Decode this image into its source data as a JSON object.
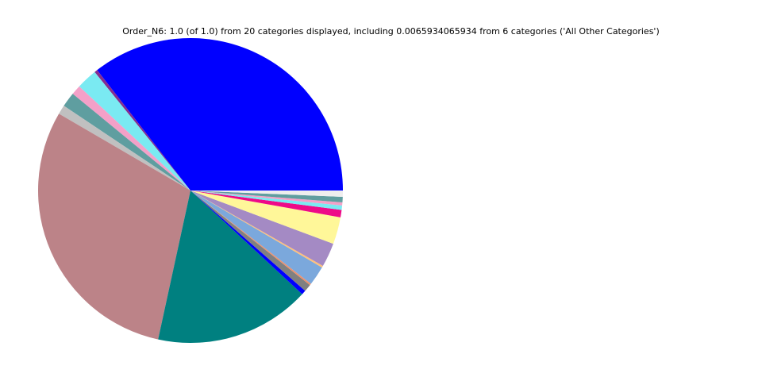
{
  "chart_data": {
    "type": "pie",
    "title": "Order_N6: 1.0 (of 1.0) from 20 categories displayed, including 0.0065934065934 from 6 categories ('All Other Categories')",
    "start_angle_deg": 0,
    "direction": "counterclockwise",
    "legend": "none",
    "slices": [
      {
        "value": 0.355,
        "color": "#0000ff"
      },
      {
        "value": 0.0033,
        "color": "#862d8e"
      },
      {
        "value": 0.022,
        "color": "#7aeaf2"
      },
      {
        "value": 0.0103,
        "color": "#f4a0c8"
      },
      {
        "value": 0.0156,
        "color": "#5f9ea0"
      },
      {
        "value": 0.0097,
        "color": "#c0c0c0"
      },
      {
        "value": 0.3,
        "color": "#bc8388"
      },
      {
        "value": 0.165,
        "color": "#008080"
      },
      {
        "value": 0.0047,
        "color": "#0000ff"
      },
      {
        "value": 0.0078,
        "color": "#808080"
      },
      {
        "value": 0.0017,
        "color": "#f0906a"
      },
      {
        "value": 0.0206,
        "color": "#7ba8dc"
      },
      {
        "value": 0.0019,
        "color": "#ffc07a"
      },
      {
        "value": 0.0256,
        "color": "#a48ac4"
      },
      {
        "value": 0.0286,
        "color": "#fff799"
      },
      {
        "value": 0.0078,
        "color": "#ee0a88"
      },
      {
        "value": 0.0047,
        "color": "#7aeaf2"
      },
      {
        "value": 0.0033,
        "color": "#f4a0c8"
      },
      {
        "value": 0.0058,
        "color": "#5f9ea0"
      },
      {
        "value": 0.0066,
        "color": "#eeeeee"
      }
    ]
  }
}
